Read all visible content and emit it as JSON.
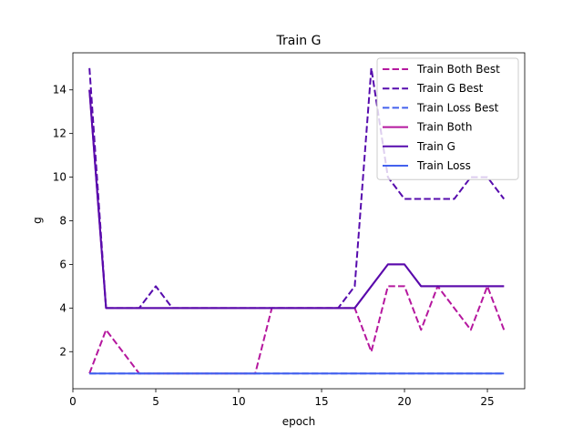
{
  "chart_data": {
    "type": "line",
    "title": "Train G",
    "xlabel": "epoch",
    "ylabel": "g",
    "xlim": [
      0,
      27.25
    ],
    "ylim": [
      0.3,
      15.7
    ],
    "xticks": [
      0,
      5,
      10,
      15,
      20,
      25
    ],
    "yticks": [
      2,
      4,
      6,
      8,
      10,
      12,
      14
    ],
    "grid": false,
    "legend_position": "top-right",
    "x": [
      1,
      2,
      3,
      4,
      5,
      6,
      7,
      8,
      9,
      10,
      11,
      12,
      13,
      14,
      15,
      16,
      17,
      18,
      19,
      20,
      21,
      22,
      23,
      24,
      25,
      26
    ],
    "series": [
      {
        "name": "Train Both Best",
        "color": "#b5179e",
        "style": "dashed",
        "values": [
          1,
          3,
          2,
          1,
          1,
          1,
          1,
          1,
          1,
          1,
          1,
          4,
          4,
          4,
          4,
          4,
          4,
          2,
          5,
          5,
          3,
          5,
          4,
          3,
          5,
          3
        ]
      },
      {
        "name": "Train G Best",
        "color": "#560bad",
        "style": "dashed",
        "values": [
          15,
          4,
          4,
          4,
          5,
          4,
          4,
          4,
          4,
          4,
          4,
          4,
          4,
          4,
          4,
          4,
          5,
          15,
          10,
          9,
          9,
          9,
          9,
          10,
          10,
          9
        ]
      },
      {
        "name": "Train Loss Best",
        "color": "#4361ee",
        "style": "dashed",
        "values": [
          1,
          1,
          1,
          1,
          1,
          1,
          1,
          1,
          1,
          1,
          1,
          1,
          1,
          1,
          1,
          1,
          1,
          1,
          1,
          1,
          1,
          1,
          1,
          1,
          1,
          1
        ]
      },
      {
        "name": "Train Both",
        "color": "#b5179e",
        "style": "solid",
        "values": [
          14,
          4,
          4,
          4,
          4,
          4,
          4,
          4,
          4,
          4,
          4,
          4,
          4,
          4,
          4,
          4,
          4,
          5,
          6,
          6,
          5,
          5,
          5,
          5,
          5,
          5
        ]
      },
      {
        "name": "Train G",
        "color": "#560bad",
        "style": "solid",
        "values": [
          14,
          4,
          4,
          4,
          4,
          4,
          4,
          4,
          4,
          4,
          4,
          4,
          4,
          4,
          4,
          4,
          4,
          5,
          6,
          6,
          5,
          5,
          5,
          5,
          5,
          5
        ]
      },
      {
        "name": "Train Loss",
        "color": "#4361ee",
        "style": "solid",
        "values": [
          1,
          1,
          1,
          1,
          1,
          1,
          1,
          1,
          1,
          1,
          1,
          1,
          1,
          1,
          1,
          1,
          1,
          1,
          1,
          1,
          1,
          1,
          1,
          1,
          1,
          1
        ]
      }
    ]
  }
}
